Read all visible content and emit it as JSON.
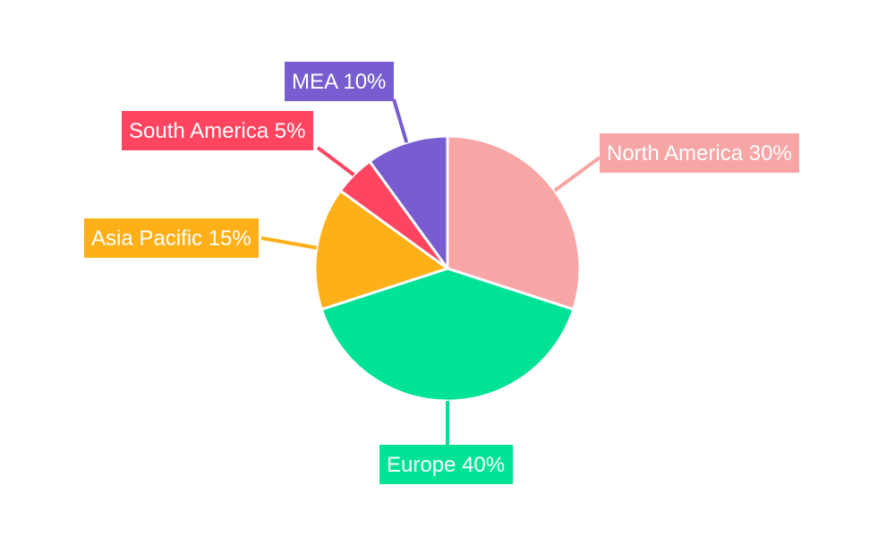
{
  "chart_data": {
    "type": "pie",
    "title": "",
    "slices": [
      {
        "label": "North America",
        "value": 30,
        "display": "North America 30%",
        "color": "#f8a5a6"
      },
      {
        "label": "Europe",
        "value": 40,
        "display": "Europe 40%",
        "color": "#00e396"
      },
      {
        "label": "Asia Pacific",
        "value": 15,
        "display": "Asia Pacific 15%",
        "color": "#feb019"
      },
      {
        "label": "South America",
        "value": 5,
        "display": "South America 5%",
        "color": "#ff4560"
      },
      {
        "label": "MEA",
        "value": 10,
        "display": "MEA 10%",
        "color": "#775dd0"
      }
    ],
    "start_angle": "12 o'clock",
    "direction": "clockwise",
    "legend": "none",
    "label_style": "outside labels with leader lines"
  }
}
